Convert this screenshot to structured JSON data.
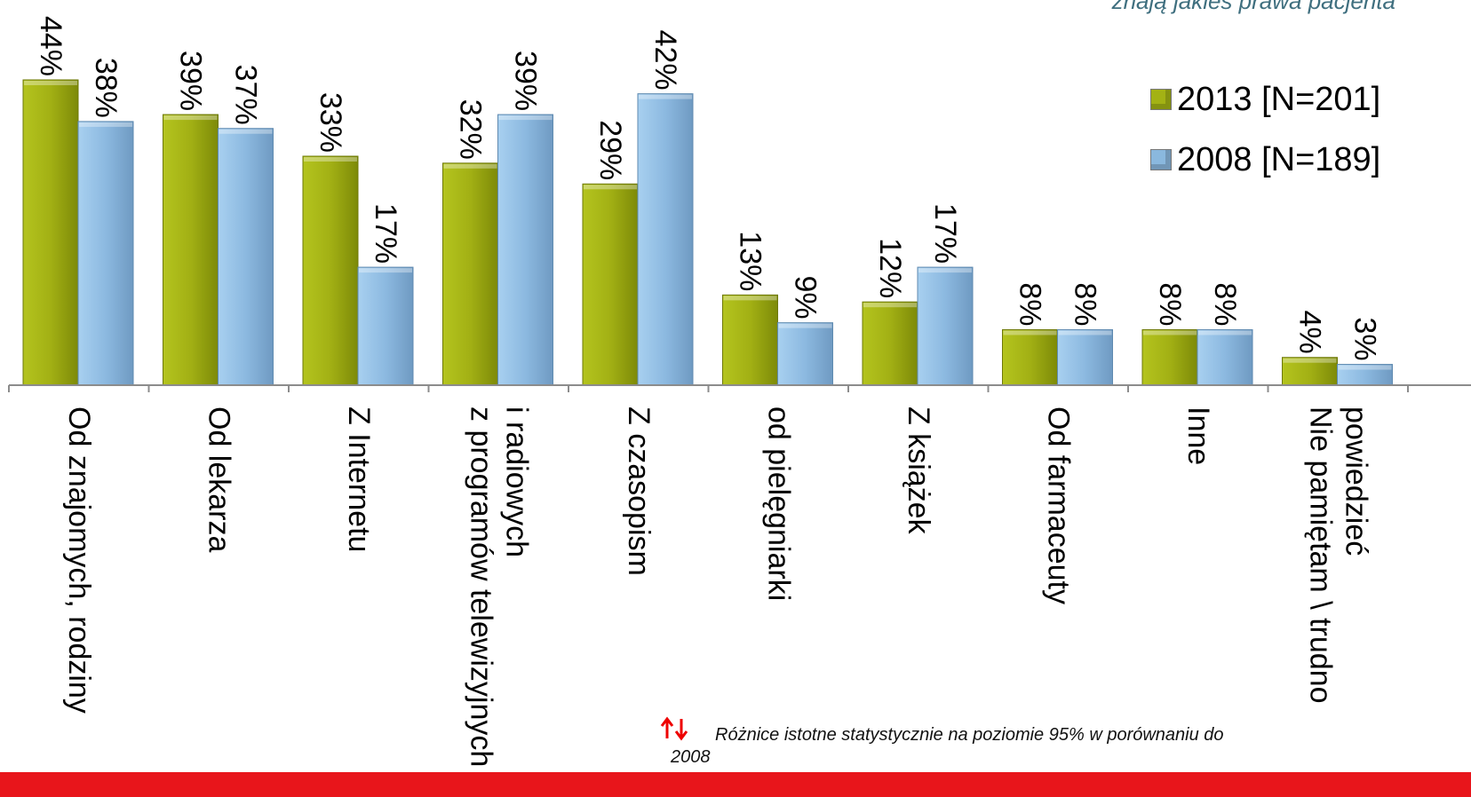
{
  "subtitle": "znają jakieś prawa pacjenta",
  "colors": {
    "series_2013": "#a3b214",
    "series_2008": "#8ab8de",
    "red": "#ee0000"
  },
  "legend": [
    {
      "label": "2013 [N=201]",
      "color": "#a3b214"
    },
    {
      "label": "2008 [N=189]",
      "color": "#8ab8de"
    }
  ],
  "note": "Różnice istotne statystycznie na poziomie 95% w porównaniu do 2008",
  "note_icon": "up-down-arrows-icon",
  "chart_data": {
    "type": "bar",
    "categories": [
      [
        "Od znajomych, rodziny"
      ],
      [
        "Od lekarza"
      ],
      [
        "Z Internetu"
      ],
      [
        "z programów telewizyjnych",
        "i radiowych"
      ],
      [
        "Z czasopism"
      ],
      [
        "od pielęgniarki"
      ],
      [
        "Z książek"
      ],
      [
        "Od farmaceuty"
      ],
      [
        "Inne"
      ],
      [
        "Nie pamiętam \\ trudno",
        "powiedzieć"
      ]
    ],
    "series": [
      {
        "name": "2013 [N=201]",
        "values": [
          44,
          39,
          33,
          32,
          29,
          13,
          12,
          8,
          8,
          4
        ],
        "labels": [
          "44%",
          "39%",
          "33%",
          "32%",
          "29%",
          "13%",
          "12%",
          "8%",
          "8%",
          "4%"
        ]
      },
      {
        "name": "2008 [N=189]",
        "values": [
          38,
          37,
          17,
          39,
          42,
          9,
          17,
          8,
          8,
          3
        ],
        "labels": [
          "38%",
          "37%",
          "17%",
          "39%",
          "42%",
          "9%",
          "17%",
          "8%",
          "8%",
          "3%"
        ]
      }
    ],
    "ylim": [
      0,
      44
    ],
    "legend_position": "top-right"
  }
}
